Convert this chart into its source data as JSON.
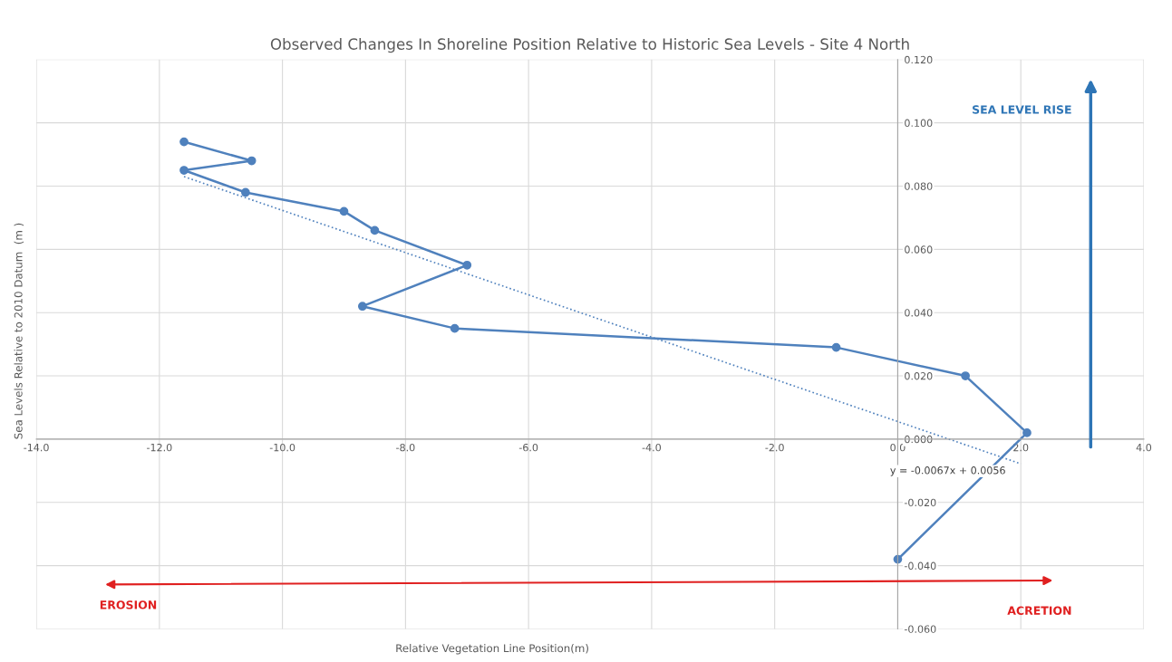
{
  "chart_data": {
    "type": "line",
    "title": "Observed Changes In Shoreline Position Relative to Historic Sea Levels - Site 4 North",
    "xlabel": "Relative Vegetation Line Position(m)",
    "ylabel": "Sea Levels Relative to 2010 Datum  (m )",
    "series": [
      {
        "color": "#4f81bd",
        "marker": "circle",
        "line_style": "solid",
        "x": [
          0.0,
          2.1,
          1.1,
          -1.0,
          -7.2,
          -8.7,
          -7.0,
          -8.5,
          -9.0,
          -10.6,
          -11.6,
          -10.5,
          -11.6
        ],
        "values": [
          -0.038,
          0.002,
          0.02,
          0.029,
          0.035,
          0.042,
          0.055,
          0.066,
          0.072,
          0.078,
          0.085,
          0.088,
          0.094
        ]
      },
      {
        "color": "#4f81bd",
        "marker": "none",
        "line_style": "dotted",
        "x": [
          -11.6,
          2.0
        ],
        "values": [
          0.083,
          -0.0078
        ]
      }
    ],
    "annotations": [
      {
        "text": "y = -0.0067x + 0.0056",
        "x": 2.0,
        "y": -0.0078
      },
      "SEA LEVEL RISE",
      "EROSION",
      "ACRETION"
    ],
    "xlim": [
      -14,
      4
    ],
    "ylim": [
      -0.06,
      0.12
    ],
    "xticks": [
      {
        "value": -14,
        "label": "-14.0"
      },
      {
        "value": -12,
        "label": "-12.0"
      },
      {
        "value": -10,
        "label": "-10.0"
      },
      {
        "value": -8,
        "label": "-8.0"
      },
      {
        "value": -6,
        "label": "-6.0"
      },
      {
        "value": -4,
        "label": "-4.0"
      },
      {
        "value": -2,
        "label": "-2.0"
      },
      {
        "value": 0,
        "label": "0.0"
      },
      {
        "value": 2,
        "label": "2.0"
      },
      {
        "value": 4,
        "label": "4.0"
      }
    ],
    "yticks": [
      {
        "value": -0.06,
        "label": "-0.060"
      },
      {
        "value": -0.04,
        "label": "-0.040"
      },
      {
        "value": -0.02,
        "label": "-0.020"
      },
      {
        "value": 0,
        "label": "0.000"
      },
      {
        "value": 0.02,
        "label": "0.020"
      },
      {
        "value": 0.04,
        "label": "0.040"
      },
      {
        "value": 0.06,
        "label": "0.060"
      },
      {
        "value": 0.08,
        "label": "0.080"
      },
      {
        "value": 0.1,
        "label": "0.100"
      },
      {
        "value": 0.12,
        "label": "0.120"
      }
    ],
    "grid": true,
    "legend": false
  }
}
